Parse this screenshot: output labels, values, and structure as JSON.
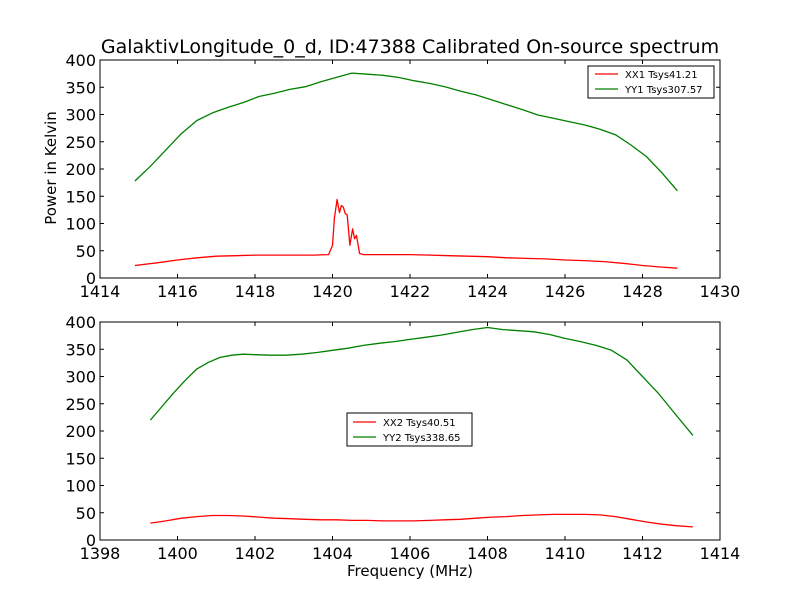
{
  "chart_data": [
    {
      "type": "line",
      "title": "GalaktivLongitude_0_d, ID:47388 Calibrated On-source spectrum",
      "xlabel": "",
      "ylabel": "Power in Kelvin",
      "xlim": [
        1414,
        1430
      ],
      "ylim": [
        0,
        400
      ],
      "xticks": [
        "1414",
        "1416",
        "1418",
        "1420",
        "1422",
        "1424",
        "1426",
        "1428",
        "1430"
      ],
      "yticks": [
        "0",
        "50",
        "100",
        "150",
        "200",
        "250",
        "300",
        "350",
        "400"
      ],
      "legend_position": "top-right",
      "grid": false,
      "series": [
        {
          "name": "XX1 Tsys41.21",
          "color": "#ff0000",
          "points": [
            [
              1414.9,
              23
            ],
            [
              1415.5,
              28
            ],
            [
              1416.0,
              33
            ],
            [
              1416.5,
              37
            ],
            [
              1417.0,
              40
            ],
            [
              1417.5,
              41
            ],
            [
              1418.0,
              42
            ],
            [
              1418.5,
              42
            ],
            [
              1419.0,
              42
            ],
            [
              1419.5,
              42
            ],
            [
              1419.9,
              43
            ],
            [
              1420.0,
              60
            ],
            [
              1420.05,
              110
            ],
            [
              1420.12,
              144
            ],
            [
              1420.18,
              120
            ],
            [
              1420.23,
              133
            ],
            [
              1420.28,
              130
            ],
            [
              1420.33,
              118
            ],
            [
              1420.38,
              116
            ],
            [
              1420.45,
              60
            ],
            [
              1420.52,
              90
            ],
            [
              1420.57,
              72
            ],
            [
              1420.62,
              78
            ],
            [
              1420.7,
              45
            ],
            [
              1420.8,
              43
            ],
            [
              1421.5,
              43
            ],
            [
              1422.0,
              43
            ],
            [
              1422.5,
              42
            ],
            [
              1423.0,
              41
            ],
            [
              1423.5,
              40
            ],
            [
              1424.0,
              39
            ],
            [
              1424.5,
              37
            ],
            [
              1425.0,
              36
            ],
            [
              1425.5,
              35
            ],
            [
              1426.0,
              33
            ],
            [
              1426.5,
              32
            ],
            [
              1427.0,
              30
            ],
            [
              1427.5,
              27
            ],
            [
              1428.0,
              23
            ],
            [
              1428.5,
              20
            ],
            [
              1428.9,
              18
            ]
          ]
        },
        {
          "name": "YY1 Tsys307.57",
          "color": "#008000",
          "points": [
            [
              1414.9,
              178
            ],
            [
              1415.3,
              205
            ],
            [
              1415.7,
              235
            ],
            [
              1416.1,
              265
            ],
            [
              1416.5,
              289
            ],
            [
              1416.9,
              303
            ],
            [
              1417.3,
              313
            ],
            [
              1417.7,
              322
            ],
            [
              1418.1,
              333
            ],
            [
              1418.5,
              339
            ],
            [
              1418.9,
              346
            ],
            [
              1419.3,
              351
            ],
            [
              1419.7,
              360
            ],
            [
              1420.1,
              368
            ],
            [
              1420.5,
              376
            ],
            [
              1420.9,
              374
            ],
            [
              1421.3,
              372
            ],
            [
              1421.7,
              368
            ],
            [
              1422.1,
              362
            ],
            [
              1422.5,
              357
            ],
            [
              1422.9,
              351
            ],
            [
              1423.3,
              343
            ],
            [
              1423.7,
              336
            ],
            [
              1424.1,
              327
            ],
            [
              1424.5,
              318
            ],
            [
              1424.9,
              309
            ],
            [
              1425.3,
              299
            ],
            [
              1425.7,
              293
            ],
            [
              1426.1,
              287
            ],
            [
              1426.5,
              281
            ],
            [
              1426.9,
              273
            ],
            [
              1427.3,
              263
            ],
            [
              1427.7,
              244
            ],
            [
              1428.1,
              223
            ],
            [
              1428.5,
              193
            ],
            [
              1428.9,
              160
            ]
          ]
        }
      ]
    },
    {
      "type": "line",
      "title": "",
      "xlabel": "Frequency (MHz)",
      "ylabel": "",
      "xlim": [
        1398,
        1414
      ],
      "ylim": [
        0,
        400
      ],
      "xticks": [
        "1398",
        "1400",
        "1402",
        "1404",
        "1406",
        "1408",
        "1410",
        "1412",
        "1414"
      ],
      "yticks": [
        "0",
        "50",
        "100",
        "150",
        "200",
        "250",
        "300",
        "350",
        "400"
      ],
      "legend_position": "center",
      "grid": false,
      "series": [
        {
          "name": "XX2 Tsys40.51",
          "color": "#ff0000",
          "points": [
            [
              1399.3,
              31
            ],
            [
              1399.7,
              35
            ],
            [
              1400.1,
              40
            ],
            [
              1400.5,
              43
            ],
            [
              1400.9,
              45
            ],
            [
              1401.3,
              45
            ],
            [
              1401.7,
              44
            ],
            [
              1402.1,
              42
            ],
            [
              1402.5,
              40
            ],
            [
              1402.9,
              39
            ],
            [
              1403.3,
              38
            ],
            [
              1403.7,
              37
            ],
            [
              1404.1,
              37
            ],
            [
              1404.5,
              36
            ],
            [
              1404.9,
              36
            ],
            [
              1405.3,
              35
            ],
            [
              1405.7,
              35
            ],
            [
              1406.1,
              35
            ],
            [
              1406.5,
              36
            ],
            [
              1406.9,
              37
            ],
            [
              1407.3,
              38
            ],
            [
              1407.7,
              40
            ],
            [
              1408.1,
              42
            ],
            [
              1408.5,
              43
            ],
            [
              1408.9,
              45
            ],
            [
              1409.3,
              46
            ],
            [
              1409.7,
              47
            ],
            [
              1410.1,
              47
            ],
            [
              1410.5,
              47
            ],
            [
              1410.9,
              46
            ],
            [
              1411.3,
              43
            ],
            [
              1411.7,
              38
            ],
            [
              1412.1,
              33
            ],
            [
              1412.5,
              29
            ],
            [
              1412.9,
              26
            ],
            [
              1413.3,
              24
            ]
          ]
        },
        {
          "name": "YY2 Tsys338.65",
          "color": "#008000",
          "points": [
            [
              1399.3,
              220
            ],
            [
              1399.6,
              245
            ],
            [
              1399.9,
              270
            ],
            [
              1400.2,
              293
            ],
            [
              1400.5,
              314
            ],
            [
              1400.8,
              326
            ],
            [
              1401.1,
              335
            ],
            [
              1401.4,
              339
            ],
            [
              1401.7,
              341
            ],
            [
              1402.0,
              340
            ],
            [
              1402.4,
              339
            ],
            [
              1402.8,
              339
            ],
            [
              1403.2,
              341
            ],
            [
              1403.6,
              344
            ],
            [
              1404.0,
              348
            ],
            [
              1404.4,
              352
            ],
            [
              1404.8,
              357
            ],
            [
              1405.2,
              361
            ],
            [
              1405.6,
              364
            ],
            [
              1406.0,
              368
            ],
            [
              1406.4,
              372
            ],
            [
              1406.8,
              376
            ],
            [
              1407.2,
              381
            ],
            [
              1407.6,
              386
            ],
            [
              1408.0,
              390
            ],
            [
              1408.4,
              386
            ],
            [
              1408.8,
              384
            ],
            [
              1409.2,
              382
            ],
            [
              1409.6,
              377
            ],
            [
              1410.0,
              370
            ],
            [
              1410.4,
              364
            ],
            [
              1410.8,
              357
            ],
            [
              1411.2,
              348
            ],
            [
              1411.6,
              330
            ],
            [
              1412.0,
              300
            ],
            [
              1412.4,
              270
            ],
            [
              1412.8,
              235
            ],
            [
              1413.3,
              192
            ]
          ]
        }
      ]
    }
  ]
}
